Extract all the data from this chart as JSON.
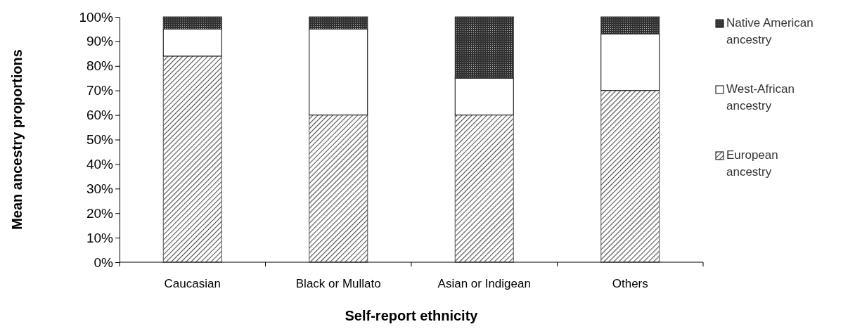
{
  "chart_data": {
    "type": "bar",
    "stacked": true,
    "xlabel": "Self-report ethnicity",
    "ylabel": "Mean ancestry proportions",
    "categories": [
      "Caucasian",
      "Black or Mullato",
      "Asian or Indigean",
      "Others"
    ],
    "series": [
      {
        "name": "European ancestry",
        "color": "#505050",
        "values": [
          84,
          60,
          60,
          70
        ]
      },
      {
        "name": "West-African ancestry",
        "color": "#ffffff",
        "values": [
          11,
          35,
          15,
          23
        ]
      },
      {
        "name": "Native American ancestry",
        "color": "#303030",
        "values": [
          5,
          5,
          25,
          7
        ]
      }
    ],
    "ylim": [
      0,
      100
    ],
    "yticks": [
      {
        "value": 0,
        "label": "0%"
      },
      {
        "value": 10,
        "label": "10%"
      },
      {
        "value": 20,
        "label": "20%"
      },
      {
        "value": 30,
        "label": "30%"
      },
      {
        "value": 40,
        "label": "40%"
      },
      {
        "value": 50,
        "label": "50%"
      },
      {
        "value": 60,
        "label": "60%"
      },
      {
        "value": 70,
        "label": "70%"
      },
      {
        "value": 80,
        "label": "80%"
      },
      {
        "value": 90,
        "label": "90%"
      },
      {
        "value": 100,
        "label": "100%"
      }
    ],
    "grid": false,
    "legend": "right"
  }
}
